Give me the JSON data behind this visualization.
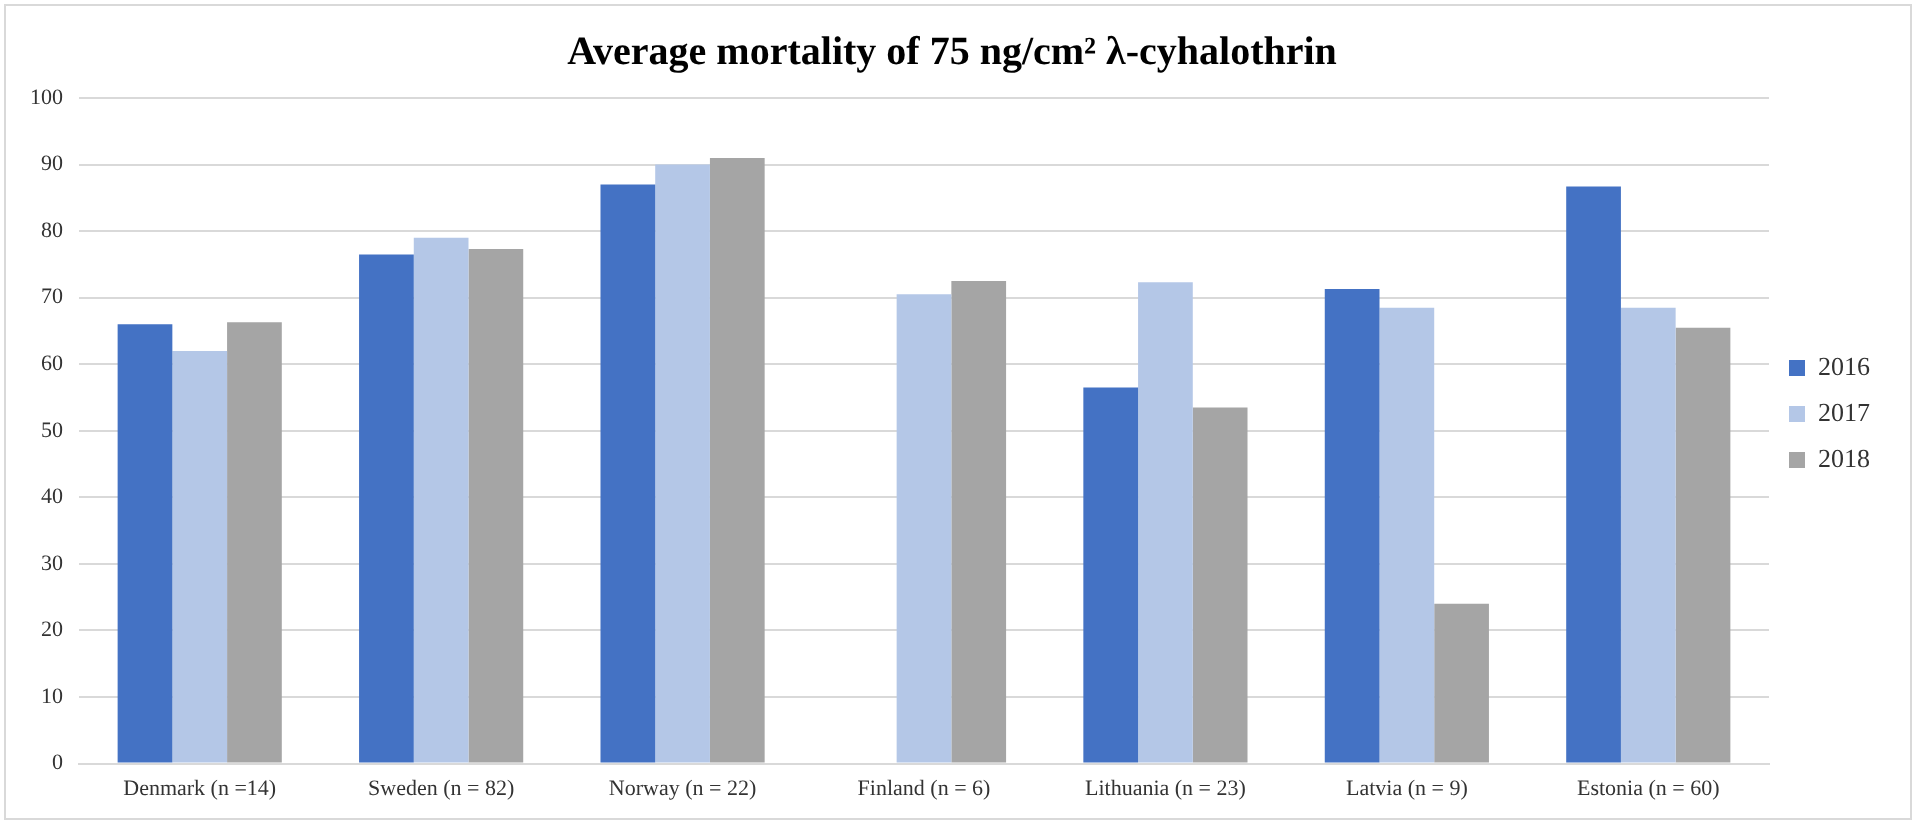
{
  "chart_data": {
    "type": "bar",
    "title": "Average mortality of 75 ng/cm² λ-cyhalothrin",
    "categories": [
      "Denmark (n =14)",
      "Sweden (n = 82)",
      "Norway (n = 22)",
      "Finland (n = 6)",
      "Lithuania (n = 23)",
      "Latvia (n = 9)",
      "Estonia (n = 60)"
    ],
    "series": [
      {
        "name": "2016",
        "color": "#4472c4",
        "values": [
          66,
          76.5,
          87,
          null,
          56.5,
          71.3,
          86.7
        ]
      },
      {
        "name": "2017",
        "color": "#b4c7e7",
        "values": [
          62,
          79,
          90,
          70.5,
          72.3,
          68.5,
          68.5
        ]
      },
      {
        "name": "2018",
        "color": "#a5a5a5",
        "values": [
          66.3,
          77.3,
          91,
          72.5,
          53.5,
          24,
          65.5
        ]
      }
    ],
    "ylim": [
      0,
      100
    ],
    "yticks": [
      0,
      10,
      20,
      30,
      40,
      50,
      60,
      70,
      80,
      90,
      100
    ],
    "grid": "y",
    "legend": "right"
  }
}
